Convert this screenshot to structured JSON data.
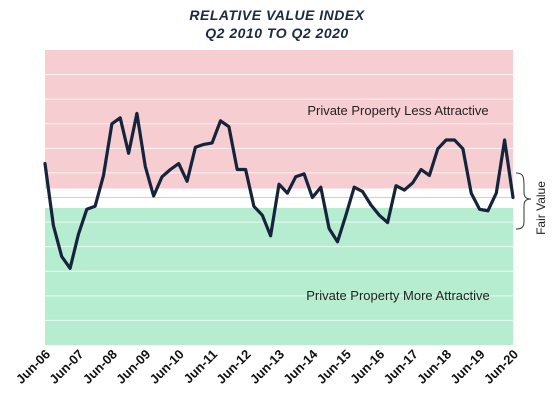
{
  "chart_data": {
    "type": "line",
    "title": "RELATIVE VALUE INDEX",
    "subtitle": "Q2 2010 TO Q2 2020",
    "x_tick_labels": [
      "Jun-06",
      "Jun-07",
      "Jun-08",
      "Jun-09",
      "Jun-10",
      "Jun-11",
      "Jun-12",
      "Jun-13",
      "Jun-14",
      "Jun-15",
      "Jun-16",
      "Jun-17",
      "Jun-18",
      "Jun-19",
      "Jun-20"
    ],
    "xlim": [
      2006.5,
      2020.5
    ],
    "ylim": [
      -10,
      10
    ],
    "grid": true,
    "zones": {
      "upper_label": "Private Property Less  Attractive",
      "lower_label": "Private Property More Attractive",
      "fair_value_label": "Fair Value",
      "fair_band": [
        -0.7,
        0.6
      ],
      "colors": {
        "upper": "#f6cdd0",
        "lower": "#b6ecd0",
        "fair": "#ffffff"
      }
    },
    "line_color": "#15233b",
    "series": [
      {
        "x": [
          2006.5,
          2006.75,
          2007.0,
          2007.25,
          2007.5,
          2007.75,
          2008.0,
          2008.25,
          2008.5,
          2008.75,
          2009.0,
          2009.25,
          2009.5,
          2009.75,
          2010.0,
          2010.25,
          2010.5,
          2010.75,
          2011.0,
          2011.25,
          2011.5,
          2011.75,
          2012.0,
          2012.25,
          2012.5,
          2012.75,
          2013.0,
          2013.25,
          2013.5,
          2013.75,
          2014.0,
          2014.25,
          2014.5,
          2014.75,
          2015.0,
          2015.25,
          2015.5,
          2015.75,
          2016.0,
          2016.25,
          2016.5,
          2016.75,
          2017.0,
          2017.25,
          2017.5,
          2017.75,
          2018.0,
          2018.25,
          2018.5,
          2018.75,
          2019.0,
          2019.25,
          2019.5,
          2019.75,
          2020.0,
          2020.25,
          2020.5
        ],
        "values": [
          2.3,
          -1.9,
          -4.0,
          -4.8,
          -2.5,
          -0.8,
          -0.6,
          1.5,
          5.0,
          5.4,
          3.0,
          5.7,
          2.1,
          0.1,
          1.4,
          1.9,
          2.3,
          1.1,
          3.4,
          3.6,
          3.7,
          5.2,
          4.8,
          1.9,
          1.9,
          -0.6,
          -1.2,
          -2.6,
          0.9,
          0.3,
          1.4,
          1.6,
          0.0,
          0.7,
          -2.1,
          -3.0,
          -1.2,
          0.7,
          0.4,
          -0.5,
          -1.2,
          -1.7,
          0.8,
          0.5,
          1.0,
          1.9,
          1.5,
          3.3,
          3.9,
          3.9,
          3.3,
          0.3,
          -0.8,
          -0.9,
          0.3,
          3.9,
          0.0
        ]
      }
    ]
  }
}
